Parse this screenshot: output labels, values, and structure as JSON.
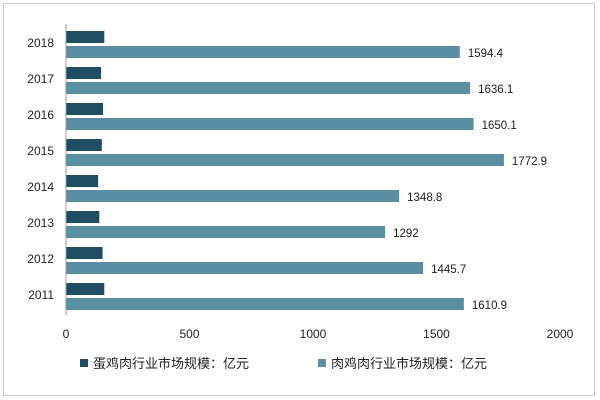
{
  "chart_data": {
    "type": "bar",
    "orientation": "horizontal",
    "categories": [
      "2018",
      "2017",
      "2016",
      "2015",
      "2014",
      "2013",
      "2012",
      "2011"
    ],
    "series": [
      {
        "name": "蛋鸡肉行业市场规模：亿元",
        "color": "#1f4e63",
        "values": [
          155,
          142,
          150,
          145,
          130,
          135,
          148,
          155
        ]
      },
      {
        "name": "肉鸡肉行业市场规模：亿元",
        "color": "#5a8ea3",
        "values": [
          1594.4,
          1636.1,
          1650.1,
          1772.9,
          1348.8,
          1292,
          1445.7,
          1610.9
        ],
        "labels": [
          "1594.4",
          "1636.1",
          "1650.1",
          "1772.9",
          "1348.8",
          "1292",
          "1445.7",
          "1610.9"
        ]
      }
    ],
    "xticks": [
      "0",
      "500",
      "1000",
      "1500",
      "2000"
    ],
    "xlim": [
      0,
      2000
    ],
    "grid": false,
    "legend_position": "bottom"
  }
}
